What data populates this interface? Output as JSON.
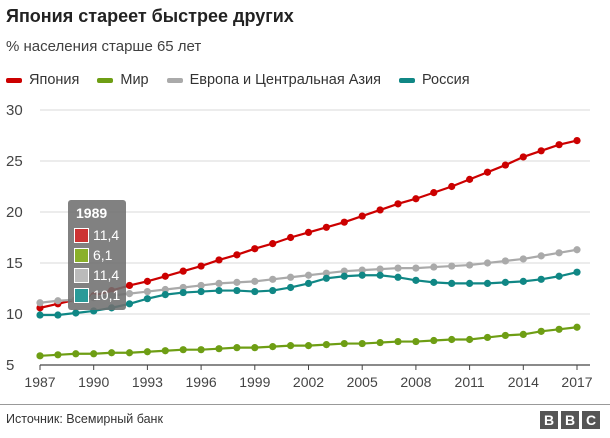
{
  "title": "Япония стареет быстрее других",
  "subtitle": "% населения старше 65 лет",
  "source": "Источник: Всемирный банк",
  "logo": [
    "B",
    "B",
    "C"
  ],
  "legend": [
    {
      "label": "Япония",
      "color": "#cc0000"
    },
    {
      "label": "Мир",
      "color": "#6e9e14"
    },
    {
      "label": "Европа и Центральная Азия",
      "color": "#aaaaaa"
    },
    {
      "label": "Россия",
      "color": "#108785"
    }
  ],
  "tooltip": {
    "year": "1989",
    "rows": [
      {
        "value": "11,4",
        "color": "#cc3333"
      },
      {
        "value": "6,1",
        "color": "#8ab02a"
      },
      {
        "value": "11,4",
        "color": "#bbbbbb"
      },
      {
        "value": "10,1",
        "color": "#2a9a98"
      }
    ]
  },
  "chart_data": {
    "type": "line",
    "title": "Япония стареет быстрее других",
    "subtitle": "% населения старше 65 лет",
    "xlabel": "",
    "ylabel": "",
    "ylim": [
      5,
      30
    ],
    "xlim": [
      1987,
      2017
    ],
    "yticks": [
      5,
      10,
      15,
      20,
      25,
      30
    ],
    "xticks": [
      1987,
      1990,
      1993,
      1996,
      1999,
      2002,
      2005,
      2008,
      2011,
      2014,
      2017
    ],
    "grid": true,
    "x": [
      1987,
      1988,
      1989,
      1990,
      1991,
      1992,
      1993,
      1994,
      1995,
      1996,
      1997,
      1998,
      1999,
      2000,
      2001,
      2002,
      2003,
      2004,
      2005,
      2006,
      2007,
      2008,
      2009,
      2010,
      2011,
      2012,
      2013,
      2014,
      2015,
      2016,
      2017
    ],
    "series": [
      {
        "name": "Япония",
        "color": "#cc0000",
        "values": [
          10.6,
          11.0,
          11.4,
          11.8,
          12.3,
          12.8,
          13.2,
          13.7,
          14.2,
          14.7,
          15.3,
          15.8,
          16.4,
          16.9,
          17.5,
          18.0,
          18.5,
          19.0,
          19.6,
          20.2,
          20.8,
          21.3,
          21.9,
          22.5,
          23.2,
          23.9,
          24.6,
          25.4,
          26.0,
          26.6,
          27.0
        ]
      },
      {
        "name": "Мир",
        "color": "#6e9e14",
        "values": [
          5.9,
          6.0,
          6.1,
          6.1,
          6.2,
          6.2,
          6.3,
          6.4,
          6.5,
          6.5,
          6.6,
          6.7,
          6.7,
          6.8,
          6.9,
          6.9,
          7.0,
          7.1,
          7.1,
          7.2,
          7.3,
          7.3,
          7.4,
          7.5,
          7.5,
          7.7,
          7.9,
          8.0,
          8.3,
          8.5,
          8.7
        ]
      },
      {
        "name": "Европа и Центральная Азия",
        "color": "#aaaaaa",
        "values": [
          11.1,
          11.3,
          11.4,
          11.6,
          11.8,
          12.0,
          12.2,
          12.4,
          12.6,
          12.8,
          13.0,
          13.1,
          13.2,
          13.4,
          13.6,
          13.8,
          14.0,
          14.2,
          14.3,
          14.4,
          14.5,
          14.5,
          14.6,
          14.7,
          14.8,
          15.0,
          15.2,
          15.4,
          15.7,
          16.0,
          16.3
        ]
      },
      {
        "name": "Россия",
        "color": "#108785",
        "values": [
          9.9,
          9.9,
          10.1,
          10.3,
          10.6,
          11.0,
          11.5,
          11.9,
          12.1,
          12.2,
          12.3,
          12.3,
          12.2,
          12.3,
          12.6,
          13.0,
          13.5,
          13.7,
          13.8,
          13.8,
          13.6,
          13.3,
          13.1,
          13.0,
          13.0,
          13.0,
          13.1,
          13.2,
          13.4,
          13.7,
          14.1
        ]
      }
    ]
  }
}
